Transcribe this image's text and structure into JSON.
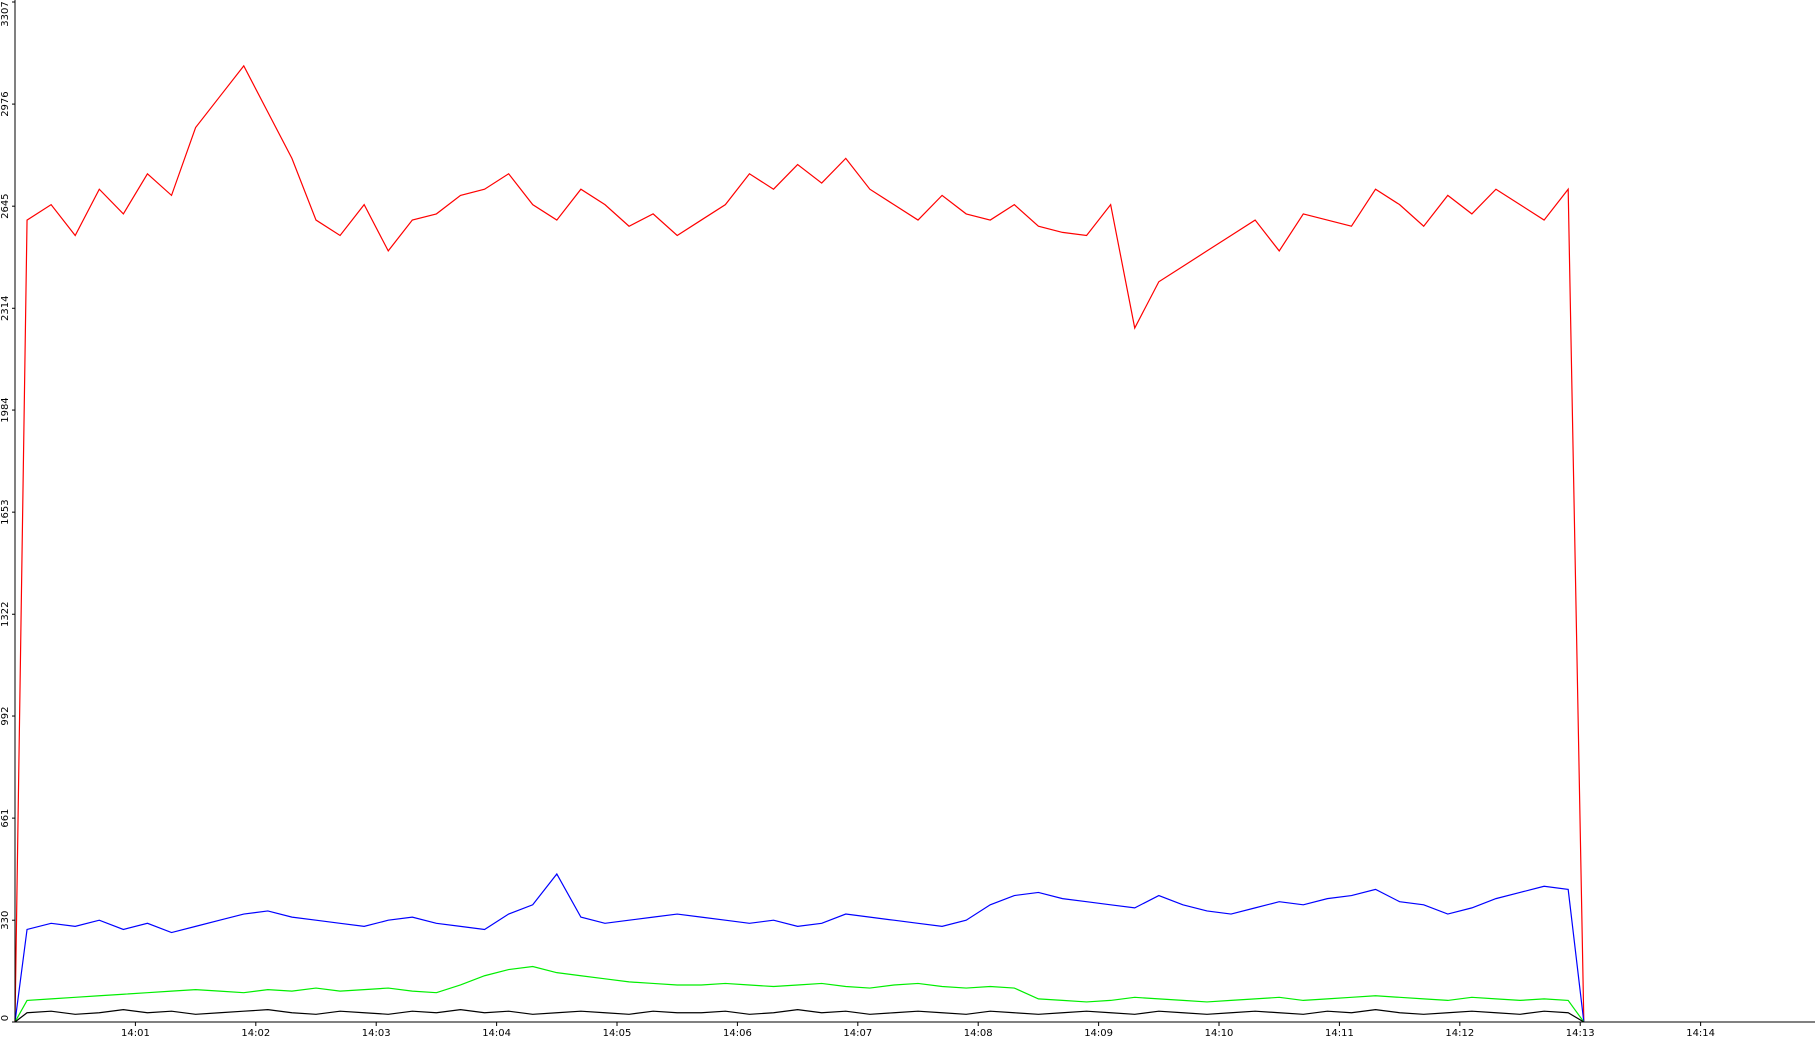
{
  "chart_data": {
    "type": "line",
    "x": [
      0,
      0.1,
      0.3,
      0.5,
      0.7,
      0.9,
      1.1,
      1.3,
      1.5,
      1.7,
      1.9,
      2.1,
      2.3,
      2.5,
      2.7,
      2.9,
      3.1,
      3.3,
      3.5,
      3.7,
      3.9,
      4.1,
      4.3,
      4.5,
      4.7,
      4.9,
      5.1,
      5.3,
      5.5,
      5.7,
      5.9,
      6.1,
      6.3,
      6.5,
      6.7,
      6.9,
      7.1,
      7.3,
      7.5,
      7.7,
      7.9,
      8.1,
      8.3,
      8.5,
      8.7,
      8.9,
      9.1,
      9.3,
      9.5,
      9.7,
      9.9,
      10.1,
      10.3,
      10.5,
      10.7,
      10.9,
      11.1,
      11.3,
      11.5,
      11.7,
      11.9,
      12.1,
      12.3,
      12.5,
      12.7,
      12.9,
      13.03
    ],
    "series": [
      {
        "color": "#ff0000",
        "values": [
          0,
          2600,
          2650,
          2550,
          2700,
          2620,
          2750,
          2680,
          2900,
          3000,
          3100,
          2950,
          2800,
          2600,
          2550,
          2650,
          2500,
          2600,
          2620,
          2680,
          2700,
          2750,
          2650,
          2600,
          2700,
          2650,
          2580,
          2620,
          2550,
          2600,
          2650,
          2750,
          2700,
          2780,
          2720,
          2800,
          2700,
          2650,
          2600,
          2680,
          2620,
          2600,
          2650,
          2580,
          2560,
          2550,
          2650,
          2250,
          2400,
          2450,
          2500,
          2550,
          2600,
          2500,
          2620,
          2600,
          2580,
          2700,
          2650,
          2580,
          2680,
          2620,
          2700,
          2650,
          2600,
          2700,
          0
        ]
      },
      {
        "color": "#0000ff",
        "values": [
          0,
          300,
          320,
          310,
          330,
          300,
          320,
          290,
          310,
          330,
          350,
          360,
          340,
          330,
          320,
          310,
          330,
          340,
          320,
          310,
          300,
          350,
          380,
          480,
          340,
          320,
          330,
          340,
          350,
          340,
          330,
          320,
          330,
          310,
          320,
          350,
          340,
          330,
          320,
          310,
          330,
          380,
          410,
          420,
          400,
          390,
          380,
          370,
          410,
          380,
          360,
          350,
          370,
          390,
          380,
          400,
          410,
          430,
          390,
          380,
          350,
          370,
          400,
          420,
          440,
          430,
          0
        ]
      },
      {
        "color": "#00ee00",
        "values": [
          0,
          70,
          75,
          80,
          85,
          90,
          95,
          100,
          105,
          100,
          95,
          105,
          100,
          110,
          100,
          105,
          110,
          100,
          95,
          120,
          150,
          170,
          180,
          160,
          150,
          140,
          130,
          125,
          120,
          120,
          125,
          120,
          115,
          120,
          125,
          115,
          110,
          120,
          125,
          115,
          110,
          115,
          110,
          75,
          70,
          65,
          70,
          80,
          75,
          70,
          65,
          70,
          75,
          80,
          70,
          75,
          80,
          85,
          80,
          75,
          70,
          80,
          75,
          70,
          75,
          70,
          0
        ]
      },
      {
        "color": "#000000",
        "values": [
          0,
          30,
          35,
          25,
          30,
          40,
          30,
          35,
          25,
          30,
          35,
          40,
          30,
          25,
          35,
          30,
          25,
          35,
          30,
          40,
          30,
          35,
          25,
          30,
          35,
          30,
          25,
          35,
          30,
          30,
          35,
          25,
          30,
          40,
          30,
          35,
          25,
          30,
          35,
          30,
          25,
          35,
          30,
          25,
          30,
          35,
          30,
          25,
          35,
          30,
          25,
          30,
          35,
          30,
          25,
          35,
          30,
          40,
          30,
          25,
          30,
          35,
          30,
          25,
          35,
          30,
          0
        ]
      }
    ],
    "ylim": [
      0,
      3307
    ],
    "yticks": [
      0,
      330,
      661,
      992,
      1322,
      1653,
      1984,
      2314,
      2645,
      2976,
      3307
    ],
    "xlim": [
      0,
      14.95
    ],
    "xticks": [
      {
        "value": 1,
        "label": "14:01"
      },
      {
        "value": 2,
        "label": "14:02"
      },
      {
        "value": 3,
        "label": "14:03"
      },
      {
        "value": 4,
        "label": "14:04"
      },
      {
        "value": 5,
        "label": "14:05"
      },
      {
        "value": 6,
        "label": "14:06"
      },
      {
        "value": 7,
        "label": "14:07"
      },
      {
        "value": 8,
        "label": "14:08"
      },
      {
        "value": 9,
        "label": "14:09"
      },
      {
        "value": 10,
        "label": "14:10"
      },
      {
        "value": 11,
        "label": "14:11"
      },
      {
        "value": 12,
        "label": "14:12"
      },
      {
        "value": 13,
        "label": "14:13"
      },
      {
        "value": 14,
        "label": "14:14"
      }
    ]
  }
}
